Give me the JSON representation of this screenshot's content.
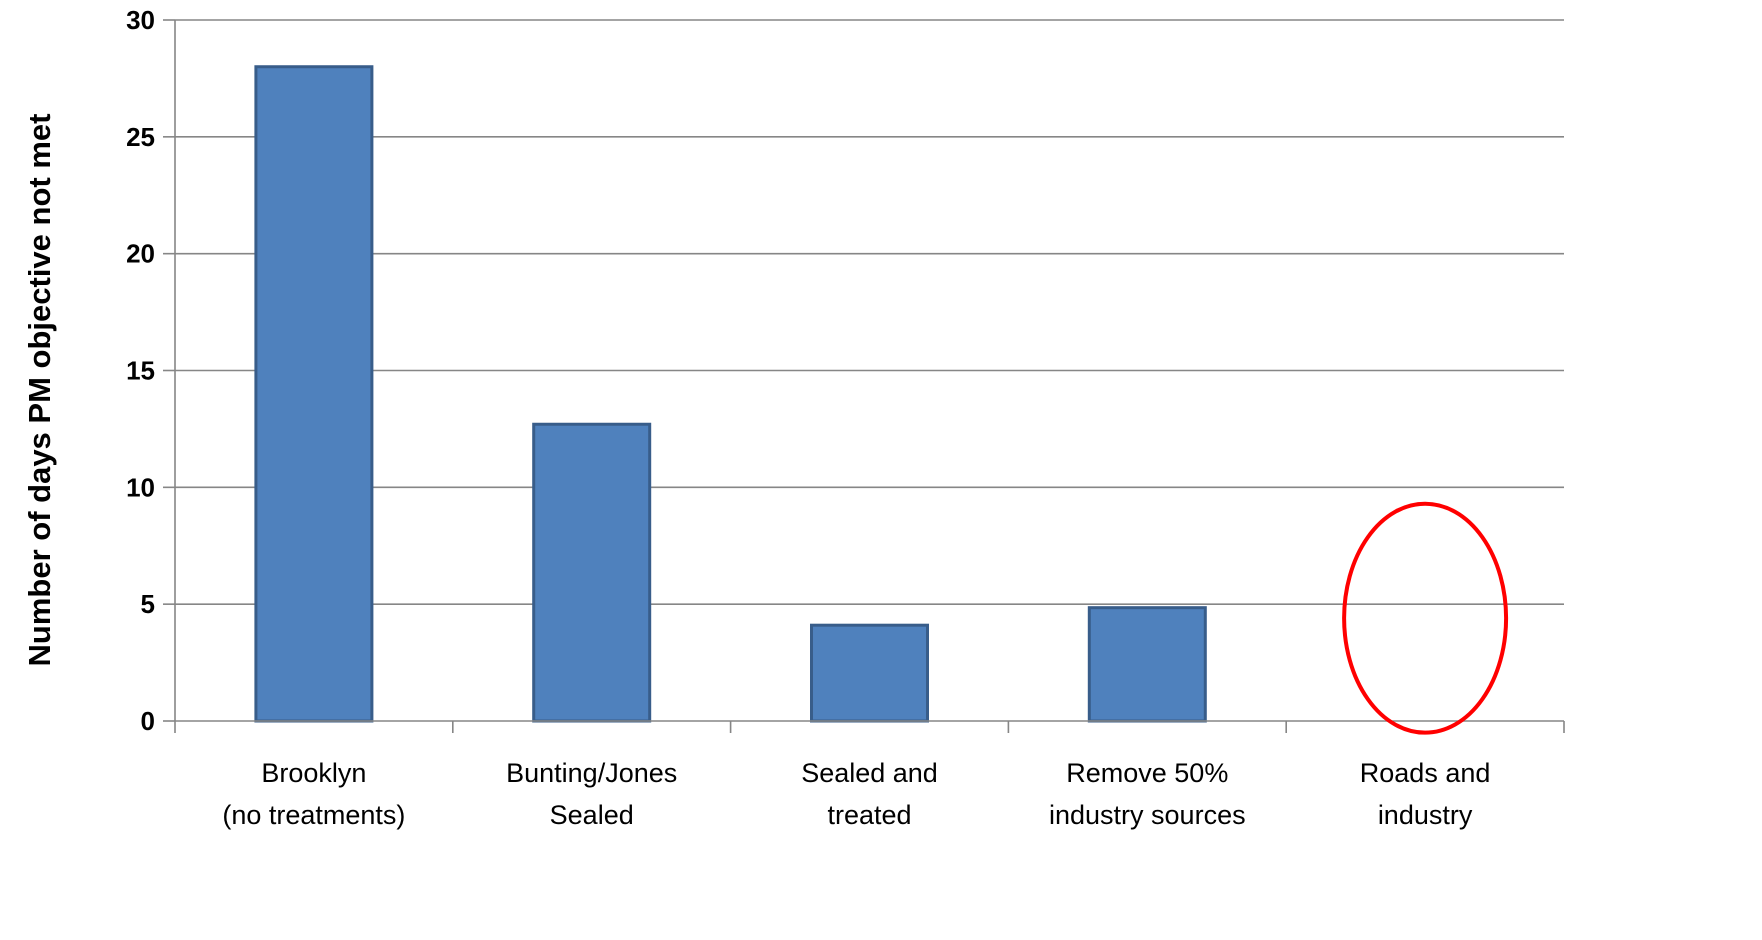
{
  "chart_data": {
    "type": "bar",
    "title": "",
    "xlabel": "",
    "ylabel": "Number of days PM objective not met",
    "ylim": [
      0,
      30
    ],
    "yticks": [
      0,
      5,
      10,
      15,
      20,
      25,
      30
    ],
    "grid": true,
    "categories": [
      [
        "Brooklyn",
        "(no treatments)"
      ],
      [
        "Bunting/Jones",
        "Sealed"
      ],
      [
        "Sealed and",
        "treated"
      ],
      [
        "Remove 50%",
        "industry sources"
      ],
      [
        "Roads and",
        "industry"
      ]
    ],
    "values": [
      28,
      12.7,
      4.1,
      4.85,
      null
    ],
    "colors": {
      "bar_fill": "#4f81bd",
      "bar_stroke": "#385d8a",
      "highlight_ellipse": "#ff0000",
      "gridline": "#868686"
    },
    "annotations": [
      {
        "type": "ellipse",
        "category_index": 4,
        "y_range": [
          -0.5,
          9.3
        ]
      }
    ]
  }
}
